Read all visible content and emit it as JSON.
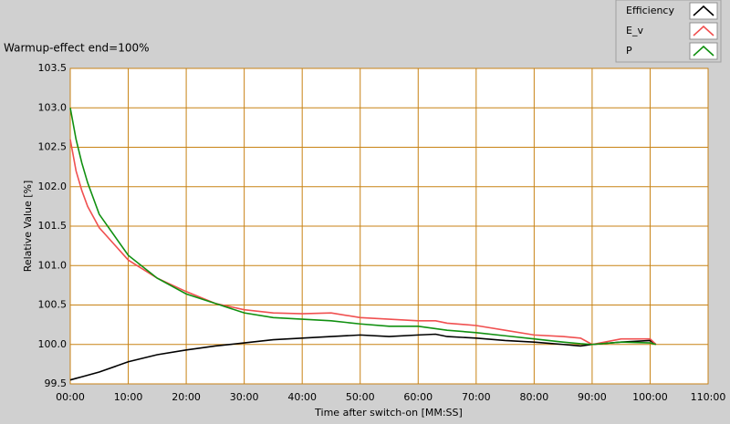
{
  "chart_data": {
    "type": "line",
    "subtitle": "Warmup-effect end=100%",
    "xlabel": "Time after switch-on [MM:SS]",
    "ylabel": "Relative Value [%]",
    "x": [
      0,
      1,
      2,
      3,
      5,
      10,
      15,
      20,
      25,
      30,
      35,
      40,
      45,
      50,
      55,
      60,
      63,
      65,
      70,
      75,
      80,
      85,
      88,
      90,
      95,
      100,
      101
    ],
    "series": [
      {
        "name": "Efficiency",
        "color": "#000000",
        "values": [
          99.55,
          99.57,
          99.59,
          99.61,
          99.65,
          99.78,
          99.87,
          99.93,
          99.98,
          100.02,
          100.06,
          100.08,
          100.1,
          100.12,
          100.1,
          100.12,
          100.13,
          100.1,
          100.08,
          100.05,
          100.03,
          100.0,
          99.98,
          100.0,
          100.03,
          100.05,
          100.0
        ]
      },
      {
        "name": "E_v",
        "color": "#f05050",
        "values": [
          102.6,
          102.2,
          101.95,
          101.75,
          101.48,
          101.07,
          100.84,
          100.67,
          100.52,
          100.44,
          100.4,
          100.39,
          100.4,
          100.34,
          100.32,
          100.3,
          100.3,
          100.27,
          100.24,
          100.18,
          100.12,
          100.1,
          100.08,
          100.0,
          100.07,
          100.07,
          100.0
        ]
      },
      {
        "name": "P",
        "color": "#109010",
        "values": [
          103.0,
          102.6,
          102.3,
          102.05,
          101.65,
          101.13,
          100.84,
          100.64,
          100.52,
          100.4,
          100.34,
          100.32,
          100.3,
          100.26,
          100.23,
          100.23,
          100.2,
          100.18,
          100.15,
          100.11,
          100.07,
          100.03,
          100.01,
          100.0,
          100.03,
          100.02,
          100.0
        ]
      }
    ],
    "xlim": [
      0,
      110
    ],
    "xticks": [
      {
        "value": 0,
        "label": "00:00"
      },
      {
        "value": 10,
        "label": "10:00"
      },
      {
        "value": 20,
        "label": "20:00"
      },
      {
        "value": 30,
        "label": "30:00"
      },
      {
        "value": 40,
        "label": "40:00"
      },
      {
        "value": 50,
        "label": "50:00"
      },
      {
        "value": 60,
        "label": "60:00"
      },
      {
        "value": 70,
        "label": "70:00"
      },
      {
        "value": 80,
        "label": "80:00"
      },
      {
        "value": 90,
        "label": "90:00"
      },
      {
        "value": 100,
        "label": "100:00"
      },
      {
        "value": 110,
        "label": "110:00"
      }
    ],
    "ylim": [
      99.5,
      103.5
    ],
    "yticks": [
      99.5,
      {
        "value": 100,
        "label": "100.0"
      },
      100.5,
      {
        "value": 101,
        "label": "101.0"
      },
      101.5,
      {
        "value": 102,
        "label": "102.0"
      },
      102.5,
      {
        "value": 103,
        "label": "103.0"
      },
      103.5
    ],
    "grid": true,
    "grid_color": "#c88214",
    "legend": "top-right"
  }
}
